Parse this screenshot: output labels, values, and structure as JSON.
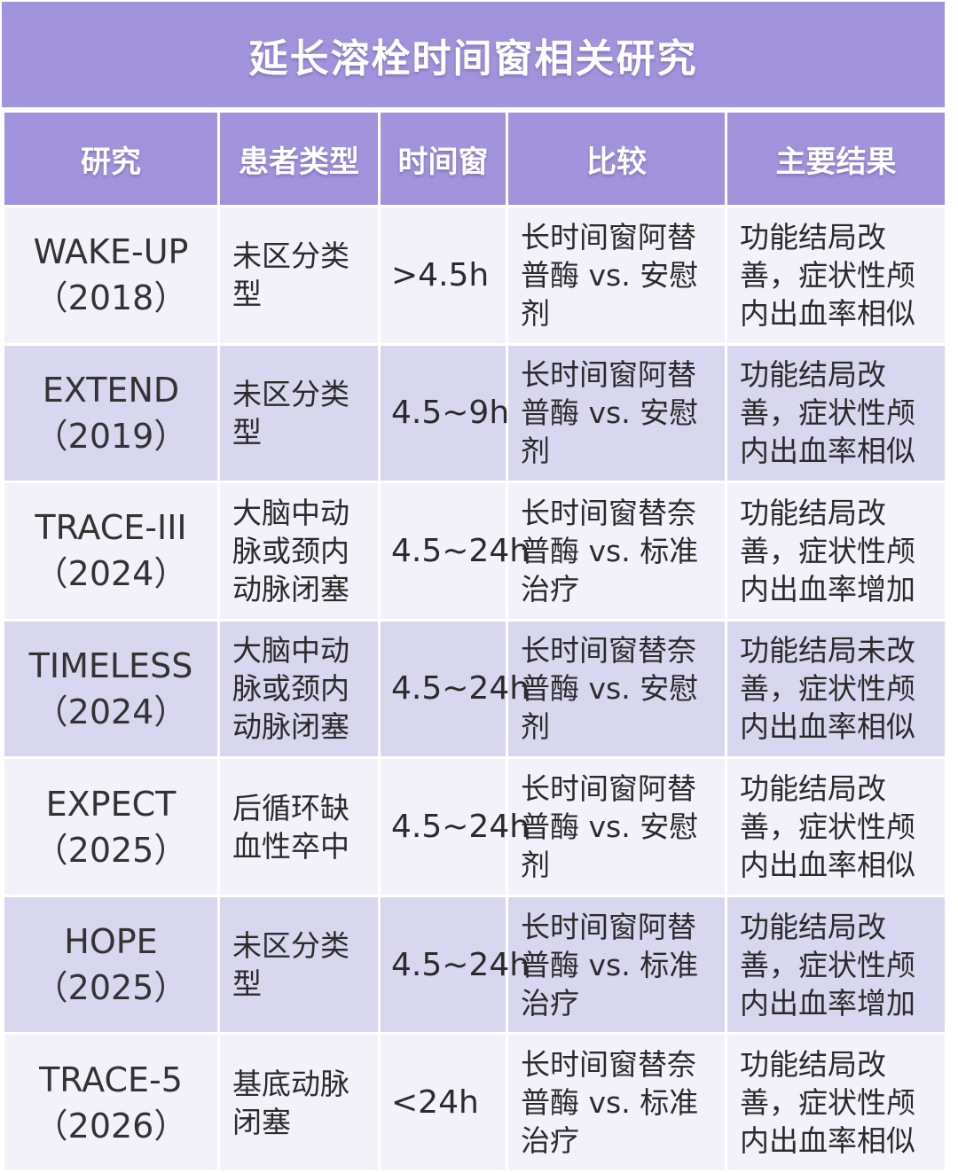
{
  "title": "延长溶栓时间窗相关研究",
  "colors": {
    "header_bg": "#a294dc",
    "row_light": "#f3f2fb",
    "row_dark": "#d9d6f0",
    "text": "#2b2b2b"
  },
  "headers": [
    "研究",
    "患者类型",
    "时间窗",
    "比较",
    "主要结果"
  ],
  "rows": [
    {
      "study": "WAKE-UP",
      "year": "（2018）",
      "patient": "未区分类型",
      "window": ">4.5h",
      "comparison": "长时间窗阿替普酶 vs. 安慰剂",
      "result": "功能结局改善，症状性颅内出血率相似"
    },
    {
      "study": "EXTEND",
      "year": "（2019）",
      "patient": "未区分类型",
      "window": "4.5~9h",
      "comparison": "长时间窗阿替普酶 vs. 安慰剂",
      "result": "功能结局改善，症状性颅内出血率相似"
    },
    {
      "study": "TRACE-III",
      "year": "（2024）",
      "patient": "大脑中动脉或颈内动脉闭塞",
      "window": "4.5~24h",
      "comparison": "长时间窗替奈普酶 vs. 标准治疗",
      "result": "功能结局改善，症状性颅内出血率增加"
    },
    {
      "study": "TIMELESS",
      "year": "（2024）",
      "patient": "大脑中动脉或颈内动脉闭塞",
      "window": "4.5~24h",
      "comparison": "长时间窗替奈普酶 vs. 安慰剂",
      "result": "功能结局未改善，症状性颅内出血率相似"
    },
    {
      "study": "EXPECT",
      "year": "（2025）",
      "patient": "后循环缺血性卒中",
      "window": "4.5~24h",
      "comparison": "长时间窗阿替普酶 vs. 安慰剂",
      "result": "功能结局改善，症状性颅内出血率相似"
    },
    {
      "study": "HOPE",
      "year": "（2025）",
      "patient": "未区分类型",
      "window": "4.5~24h",
      "comparison": "长时间窗阿替普酶 vs. 标准治疗",
      "result": "功能结局改善，症状性颅内出血率增加"
    },
    {
      "study": "TRACE-5",
      "year": "（2026）",
      "patient": "基底动脉闭塞",
      "window": "<24h",
      "comparison": "长时间窗替奈普酶 vs. 标准治疗",
      "result": "功能结局改善，症状性颅内出血率相似"
    }
  ]
}
